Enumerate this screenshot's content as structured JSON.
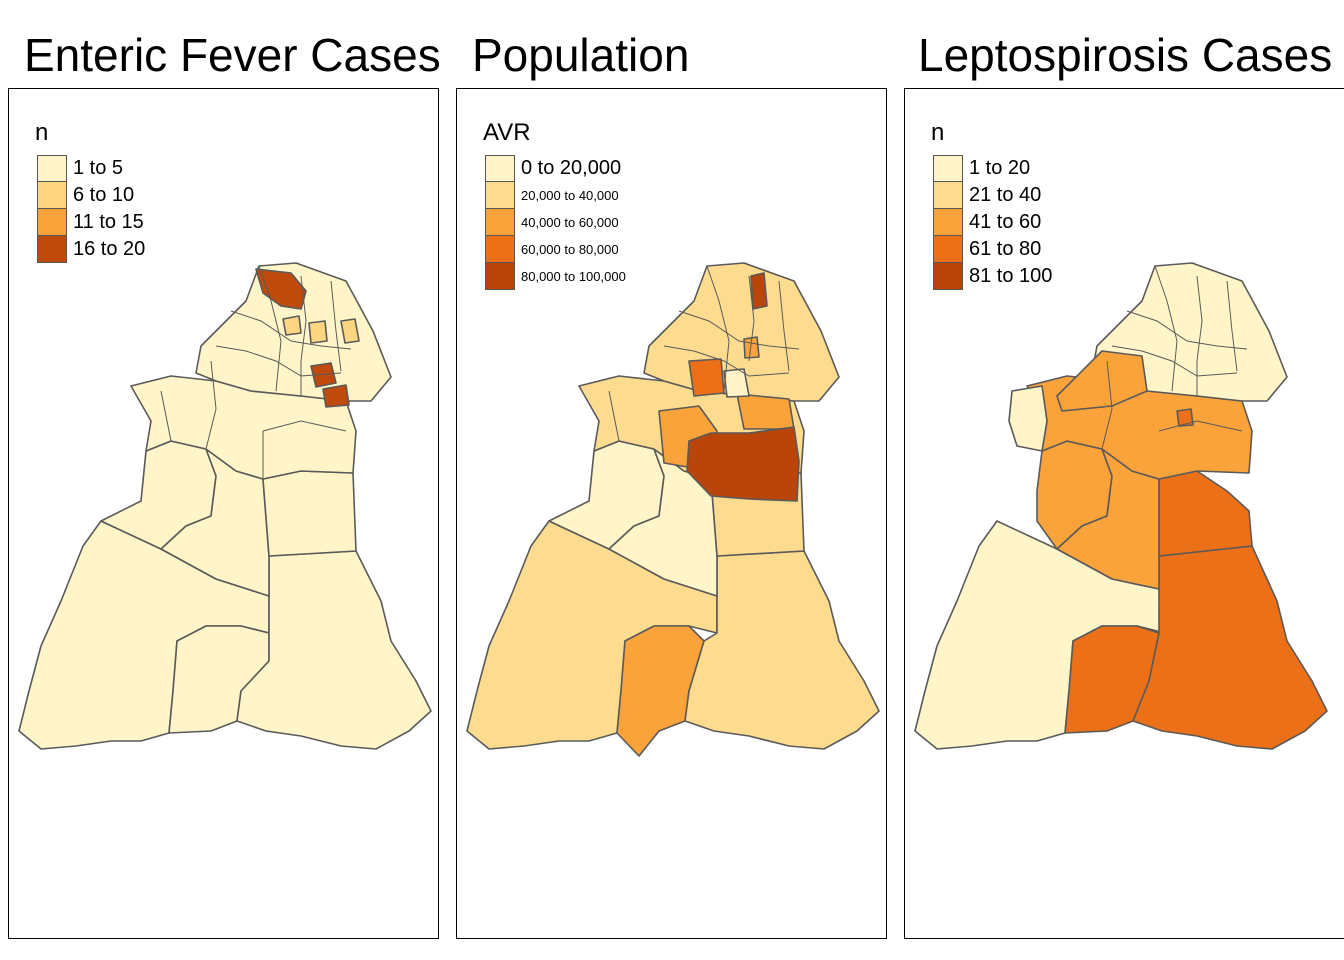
{
  "panels": [
    {
      "title": "Enteric Fever Cases",
      "legend": {
        "title": "n",
        "items": [
          {
            "label": "1 to 5",
            "color": "#fff5c8"
          },
          {
            "label": "6 to 10",
            "color": "#fed682"
          },
          {
            "label": "11 to 15",
            "color": "#fba33b"
          },
          {
            "label": "16 to 20",
            "color": "#c04a0b"
          }
        ]
      }
    },
    {
      "title": "Population",
      "legend": {
        "title": "AVR",
        "items": [
          {
            "label": "0 to 20,000",
            "color": "#fff5c8"
          },
          {
            "label": "20,000 to 40,000",
            "color": "#fedc8f"
          },
          {
            "label": "40,000 to 60,000",
            "color": "#fba33b"
          },
          {
            "label": "60,000 to 80,000",
            "color": "#ec7017"
          },
          {
            "label": "80,000 to 100,000",
            "color": "#b9450b"
          }
        ]
      }
    },
    {
      "title": "Leptospirosis Cases",
      "legend": {
        "title": "n",
        "items": [
          {
            "label": "1 to 20",
            "color": "#fff5c8"
          },
          {
            "label": "21 to 40",
            "color": "#fedc8f"
          },
          {
            "label": "41 to 60",
            "color": "#fba33b"
          },
          {
            "label": "61 to 80",
            "color": "#ec7017"
          },
          {
            "label": "81 to 100",
            "color": "#b9450b"
          }
        ]
      }
    }
  ]
}
